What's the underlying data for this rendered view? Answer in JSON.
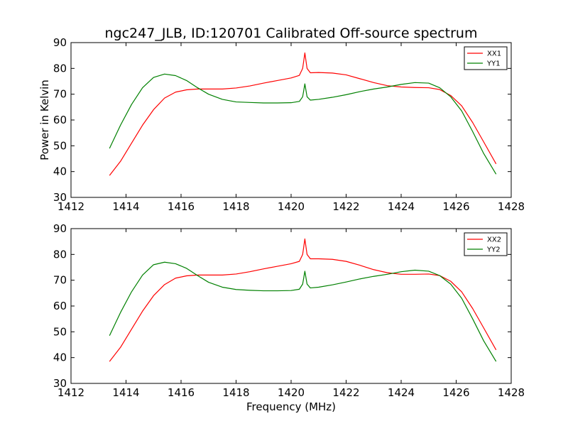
{
  "title": "ngc247_JLB, ID:120701 Calibrated Off-source spectrum",
  "colors": {
    "red": "#ff0000",
    "green": "#008000"
  },
  "chart_data": [
    {
      "type": "line",
      "title": "ngc247_JLB, ID:120701 Calibrated Off-source spectrum",
      "xlabel": "",
      "ylabel": "Power in Kelvin",
      "xlim": [
        1412,
        1428
      ],
      "ylim": [
        30,
        90
      ],
      "xticks": [
        "1412",
        "1414",
        "1416",
        "1418",
        "1420",
        "1422",
        "1424",
        "1426",
        "1428"
      ],
      "yticks": [
        "30",
        "40",
        "50",
        "60",
        "70",
        "80",
        "90"
      ],
      "legend": "top-right",
      "grid": false,
      "series": [
        {
          "name": "XX1",
          "color": "#ff0000",
          "x": [
            1413.4,
            1413.8,
            1414.2,
            1414.6,
            1415.0,
            1415.4,
            1415.8,
            1416.2,
            1416.6,
            1417.0,
            1417.5,
            1418.0,
            1418.5,
            1419.0,
            1419.5,
            1420.0,
            1420.3,
            1420.42,
            1420.5,
            1420.58,
            1420.7,
            1421.0,
            1421.5,
            1422.0,
            1422.5,
            1423.0,
            1423.5,
            1424.0,
            1424.5,
            1425.0,
            1425.4,
            1425.8,
            1426.2,
            1426.6,
            1427.0,
            1427.45
          ],
          "y": [
            38.5,
            44,
            51,
            58,
            64,
            68.5,
            70.8,
            71.7,
            72,
            72,
            72,
            72.4,
            73.2,
            74.3,
            75.3,
            76.3,
            77.3,
            80,
            86,
            80,
            78.3,
            78.4,
            78.2,
            77.5,
            76,
            74.5,
            73.3,
            72.8,
            72.6,
            72.5,
            71.8,
            69.5,
            65.5,
            59,
            51.5,
            43
          ]
        },
        {
          "name": "YY1",
          "color": "#008000",
          "x": [
            1413.4,
            1413.8,
            1414.2,
            1414.6,
            1415.0,
            1415.4,
            1415.8,
            1416.2,
            1416.6,
            1417.0,
            1417.5,
            1418.0,
            1418.5,
            1419.0,
            1419.5,
            1420.0,
            1420.3,
            1420.42,
            1420.5,
            1420.58,
            1420.7,
            1421.0,
            1421.5,
            1422.0,
            1422.5,
            1423.0,
            1423.5,
            1424.0,
            1424.5,
            1425.0,
            1425.4,
            1425.8,
            1426.2,
            1426.6,
            1427.0,
            1427.45
          ],
          "y": [
            49,
            58,
            66,
            72.5,
            76.5,
            77.8,
            77.2,
            75.3,
            72.5,
            70,
            68,
            67,
            66.8,
            66.6,
            66.6,
            66.7,
            67.2,
            69,
            74,
            69,
            67.7,
            68,
            68.8,
            69.8,
            71,
            72,
            72.8,
            73.8,
            74.5,
            74.3,
            72.5,
            69,
            63.5,
            55.5,
            47,
            39
          ]
        }
      ]
    },
    {
      "type": "line",
      "title": "",
      "xlabel": "Frequency (MHz)",
      "ylabel": "",
      "xlim": [
        1412,
        1428
      ],
      "ylim": [
        30,
        90
      ],
      "xticks": [
        "1412",
        "1414",
        "1416",
        "1418",
        "1420",
        "1422",
        "1424",
        "1426",
        "1428"
      ],
      "yticks": [
        "30",
        "40",
        "50",
        "60",
        "70",
        "80",
        "90"
      ],
      "legend": "top-right",
      "grid": false,
      "series": [
        {
          "name": "XX2",
          "color": "#ff0000",
          "x": [
            1413.4,
            1413.8,
            1414.2,
            1414.6,
            1415.0,
            1415.4,
            1415.8,
            1416.2,
            1416.6,
            1417.0,
            1417.5,
            1418.0,
            1418.5,
            1419.0,
            1419.5,
            1420.0,
            1420.3,
            1420.42,
            1420.5,
            1420.58,
            1420.7,
            1421.0,
            1421.5,
            1422.0,
            1422.5,
            1423.0,
            1423.5,
            1424.0,
            1424.5,
            1425.0,
            1425.4,
            1425.8,
            1426.2,
            1426.6,
            1427.0,
            1427.45
          ],
          "y": [
            38.5,
            44,
            51,
            58,
            64,
            68.3,
            70.8,
            71.7,
            72,
            72,
            72,
            72.4,
            73.3,
            74.4,
            75.4,
            76.4,
            77.3,
            80,
            86,
            80,
            78.3,
            78.3,
            78.1,
            77.3,
            75.8,
            74.1,
            72.9,
            72.3,
            72.3,
            72.4,
            71.8,
            69.6,
            65.5,
            59,
            51.5,
            43
          ]
        },
        {
          "name": "YY2",
          "color": "#008000",
          "x": [
            1413.4,
            1413.8,
            1414.2,
            1414.6,
            1415.0,
            1415.4,
            1415.8,
            1416.2,
            1416.6,
            1417.0,
            1417.5,
            1418.0,
            1418.5,
            1419.0,
            1419.5,
            1420.0,
            1420.3,
            1420.42,
            1420.5,
            1420.58,
            1420.7,
            1421.0,
            1421.5,
            1422.0,
            1422.5,
            1423.0,
            1423.5,
            1424.0,
            1424.5,
            1425.0,
            1425.4,
            1425.8,
            1426.2,
            1426.6,
            1427.0,
            1427.45
          ],
          "y": [
            48.5,
            57.5,
            65.5,
            72,
            76,
            77,
            76.4,
            74.6,
            71.8,
            69.2,
            67.3,
            66.4,
            66.1,
            65.9,
            65.9,
            66,
            66.5,
            68.5,
            73.5,
            68.5,
            67,
            67.3,
            68.2,
            69.3,
            70.5,
            71.5,
            72.3,
            73.3,
            73.9,
            73.5,
            71.8,
            68.5,
            63,
            55,
            46.5,
            38.5
          ]
        }
      ]
    }
  ]
}
